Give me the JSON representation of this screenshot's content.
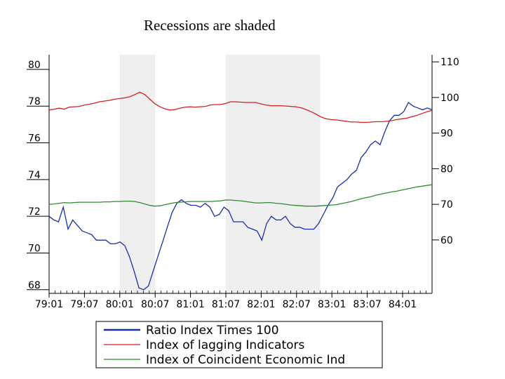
{
  "title": "Recessions are shaded",
  "chart_data": {
    "type": "line",
    "x_tick_labels": [
      "79:01",
      "79:07",
      "80:01",
      "80:07",
      "81:01",
      "81:07",
      "82:01",
      "82:07",
      "83:01",
      "83:07",
      "84:01"
    ],
    "x_start": "1979:01",
    "x_end": "1984:06",
    "recessions": [
      {
        "start": "1980:01",
        "end": "1980:07"
      },
      {
        "start": "1981:07",
        "end": "1982:11"
      }
    ],
    "left_axis": {
      "ylim": [
        67.8,
        80.8
      ],
      "ticks": [
        68,
        70,
        72,
        74,
        76,
        78,
        80
      ]
    },
    "right_axis": {
      "ylim": [
        45,
        112
      ],
      "ticks": [
        60,
        70,
        80,
        90,
        100,
        110
      ]
    },
    "series": [
      {
        "name": "Ratio Index Times 100",
        "axis": "left",
        "color": "#1a2fa8",
        "values": [
          72.0,
          71.8,
          71.7,
          72.5,
          71.3,
          71.8,
          71.5,
          71.2,
          71.1,
          71.0,
          70.7,
          70.7,
          70.7,
          70.5,
          70.5,
          70.6,
          70.4,
          69.8,
          69.0,
          68.1,
          68.0,
          68.2,
          69.0,
          69.8,
          70.6,
          71.4,
          72.2,
          72.7,
          72.9,
          72.7,
          72.6,
          72.6,
          72.5,
          72.7,
          72.5,
          72.0,
          72.1,
          72.5,
          72.3,
          71.7,
          71.7,
          71.7,
          71.4,
          71.3,
          71.2,
          70.7,
          71.6,
          72.0,
          71.8,
          71.8,
          72.0,
          71.6,
          71.4,
          71.4,
          71.3,
          71.3,
          71.3,
          71.6,
          72.1,
          72.6,
          73.0,
          73.6,
          73.8,
          74.0,
          74.3,
          74.5,
          75.2,
          75.5,
          75.9,
          76.1,
          75.9,
          76.6,
          77.2,
          77.5,
          77.5,
          77.7,
          78.2,
          78.0,
          77.9,
          77.8,
          77.9,
          77.8
        ]
      },
      {
        "name": "Index of lagging Indicators",
        "axis": "right",
        "color": "#d42020",
        "values": [
          96.5,
          96.7,
          97.0,
          96.7,
          97.3,
          97.4,
          97.5,
          97.9,
          98.1,
          98.4,
          98.8,
          99.0,
          99.2,
          99.5,
          99.7,
          99.9,
          100.2,
          100.8,
          101.5,
          100.8,
          99.5,
          98.2,
          97.4,
          96.8,
          96.5,
          96.6,
          97.0,
          97.3,
          97.4,
          97.3,
          97.4,
          97.5,
          97.9,
          98.0,
          98.0,
          98.3,
          98.8,
          98.8,
          98.7,
          98.6,
          98.6,
          98.6,
          98.2,
          97.9,
          97.7,
          97.7,
          97.7,
          97.6,
          97.5,
          97.4,
          97.1,
          96.6,
          96.0,
          95.3,
          94.5,
          94.0,
          93.8,
          93.7,
          93.5,
          93.3,
          93.1,
          93.1,
          93.0,
          93.0,
          93.1,
          93.2,
          93.2,
          93.3,
          93.5,
          93.8,
          94.0,
          94.2,
          94.6,
          95.0,
          95.5,
          96.0,
          96.4
        ]
      },
      {
        "name": "Index of Coincident Economic Ind",
        "axis": "right",
        "color": "#2e8b2e",
        "values": [
          70.0,
          70.1,
          70.3,
          70.5,
          70.4,
          70.5,
          70.6,
          70.6,
          70.6,
          70.6,
          70.6,
          70.7,
          70.7,
          70.8,
          70.8,
          70.9,
          70.9,
          70.8,
          70.5,
          70.1,
          69.7,
          69.5,
          69.6,
          69.9,
          70.2,
          70.5,
          70.6,
          70.7,
          70.8,
          70.8,
          70.8,
          70.8,
          70.8,
          70.9,
          71.0,
          71.2,
          71.2,
          71.1,
          71.0,
          70.8,
          70.6,
          70.4,
          70.4,
          70.5,
          70.5,
          70.3,
          70.2,
          70.0,
          69.8,
          69.7,
          69.6,
          69.5,
          69.5,
          69.5,
          69.6,
          69.7,
          69.8,
          69.9,
          70.2,
          70.5,
          70.8,
          71.2,
          71.6,
          71.9,
          72.2,
          72.6,
          72.9,
          73.2,
          73.5,
          73.7,
          74.0,
          74.3,
          74.6,
          74.9,
          75.1,
          75.3,
          75.5
        ]
      }
    ]
  }
}
